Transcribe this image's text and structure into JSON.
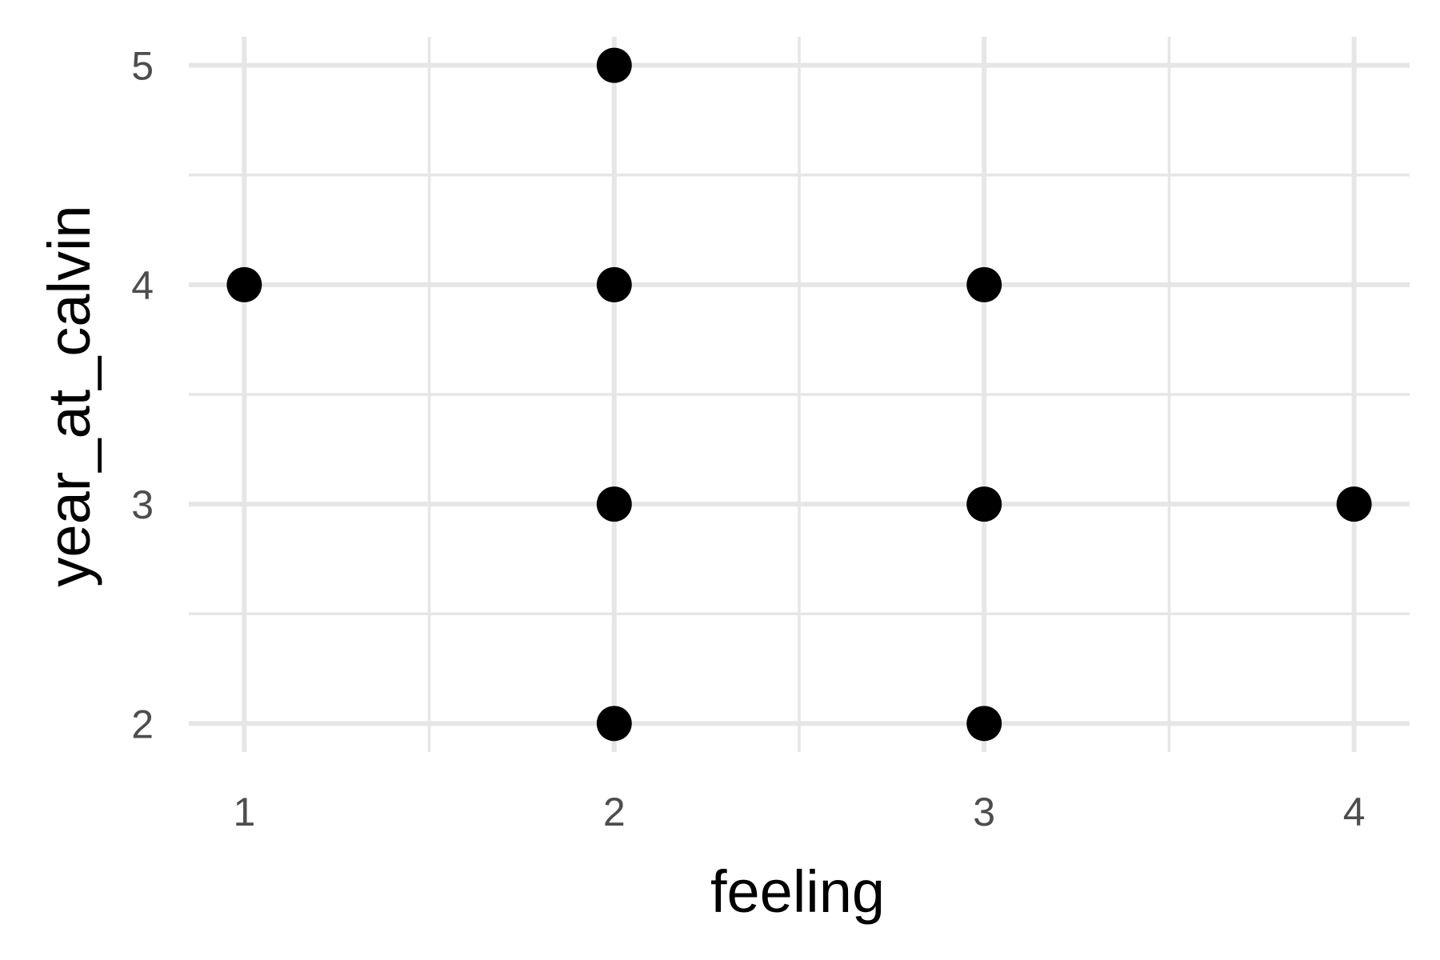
{
  "chart_data": {
    "type": "scatter",
    "xlabel": "feeling",
    "ylabel": "year_at_calvin",
    "xlim": [
      0.85,
      4.15
    ],
    "ylim": [
      1.87,
      5.13
    ],
    "x_ticks": [
      1,
      2,
      3,
      4
    ],
    "y_ticks": [
      2,
      3,
      4,
      5
    ],
    "x_minor": [
      1.5,
      2.5,
      3.5
    ],
    "y_minor": [
      2.5,
      3.5,
      4.5
    ],
    "grid": true,
    "legend": "none",
    "point_color": "#000000",
    "points": [
      {
        "x": 1,
        "y": 4
      },
      {
        "x": 2,
        "y": 5
      },
      {
        "x": 2,
        "y": 4
      },
      {
        "x": 2,
        "y": 3
      },
      {
        "x": 2,
        "y": 2
      },
      {
        "x": 3,
        "y": 4
      },
      {
        "x": 3,
        "y": 3
      },
      {
        "x": 3,
        "y": 2
      },
      {
        "x": 4,
        "y": 3
      }
    ]
  }
}
